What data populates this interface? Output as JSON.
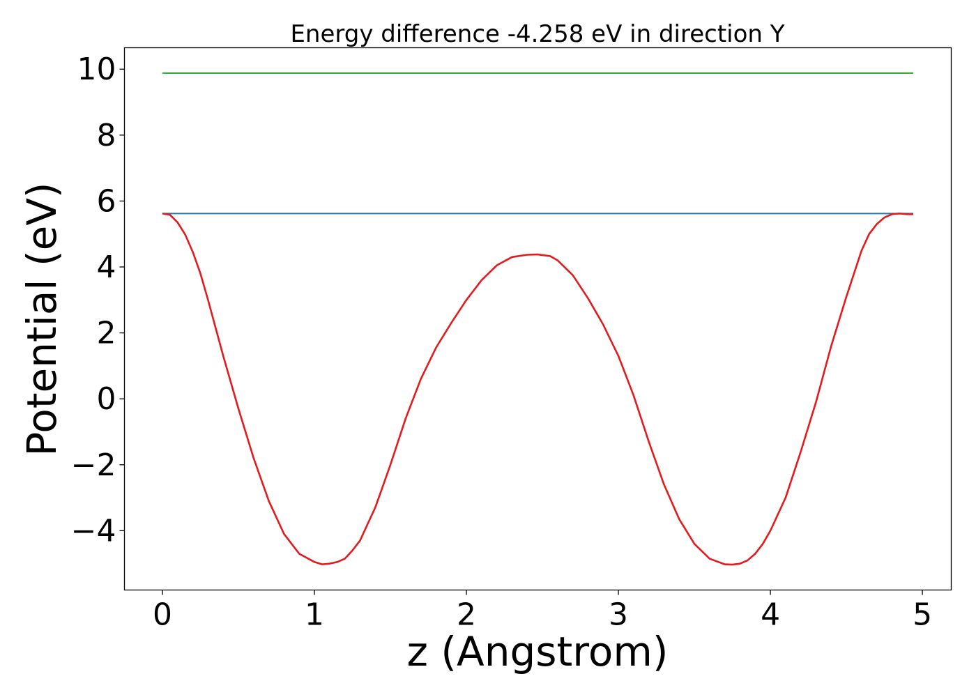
{
  "chart_data": {
    "type": "line",
    "title": "Energy difference -4.258 eV in direction Y",
    "xlabel": "z (Angstrom)",
    "ylabel": "Potential (eV)",
    "xlim": [
      -0.25,
      5.19
    ],
    "ylim": [
      -5.8,
      10.65
    ],
    "xticks": [
      0,
      1,
      2,
      3,
      4,
      5
    ],
    "xtick_labels": [
      "0",
      "1",
      "2",
      "3",
      "4",
      "5"
    ],
    "yticks": [
      -4,
      -2,
      0,
      2,
      4,
      6,
      8,
      10
    ],
    "ytick_labels": [
      "−4",
      "−2",
      "0",
      "2",
      "4",
      "6",
      "8",
      "10"
    ],
    "grid": false,
    "legend": "none",
    "series": [
      {
        "color": "#2ca02c",
        "x": [
          0,
          4.94
        ],
        "y": [
          9.88,
          9.88
        ]
      },
      {
        "color": "#1f77b4",
        "x": [
          0,
          4.94
        ],
        "y": [
          5.62,
          5.62
        ]
      },
      {
        "color": "#e41a1c",
        "x": [
          0,
          0.05,
          0.1,
          0.15,
          0.2,
          0.25,
          0.3,
          0.35,
          0.4,
          0.45,
          0.5,
          0.6,
          0.7,
          0.8,
          0.9,
          1.0,
          1.05,
          1.1,
          1.15,
          1.2,
          1.25,
          1.3,
          1.4,
          1.5,
          1.6,
          1.7,
          1.8,
          1.9,
          2.0,
          2.1,
          2.2,
          2.3,
          2.4,
          2.47,
          2.55,
          2.6,
          2.7,
          2.8,
          2.9,
          3.0,
          3.1,
          3.2,
          3.3,
          3.4,
          3.5,
          3.6,
          3.7,
          3.75,
          3.8,
          3.85,
          3.9,
          3.95,
          4.0,
          4.1,
          4.2,
          4.3,
          4.4,
          4.5,
          4.6,
          4.65,
          4.7,
          4.75,
          4.8,
          4.85,
          4.9,
          4.94
        ],
        "y": [
          5.62,
          5.58,
          5.35,
          4.98,
          4.45,
          3.8,
          3.0,
          2.15,
          1.3,
          0.5,
          -0.3,
          -1.8,
          -3.1,
          -4.1,
          -4.7,
          -4.95,
          -5.02,
          -5.0,
          -4.95,
          -4.85,
          -4.6,
          -4.3,
          -3.3,
          -2.0,
          -0.6,
          0.6,
          1.55,
          2.3,
          3.0,
          3.6,
          4.05,
          4.3,
          4.37,
          4.38,
          4.33,
          4.2,
          3.75,
          3.05,
          2.25,
          1.3,
          0.1,
          -1.3,
          -2.6,
          -3.65,
          -4.4,
          -4.85,
          -5.02,
          -5.03,
          -5.0,
          -4.9,
          -4.7,
          -4.4,
          -4.0,
          -3.0,
          -1.6,
          -0.1,
          1.6,
          3.1,
          4.5,
          5.0,
          5.3,
          5.5,
          5.6,
          5.62,
          5.6,
          5.6
        ]
      }
    ]
  }
}
